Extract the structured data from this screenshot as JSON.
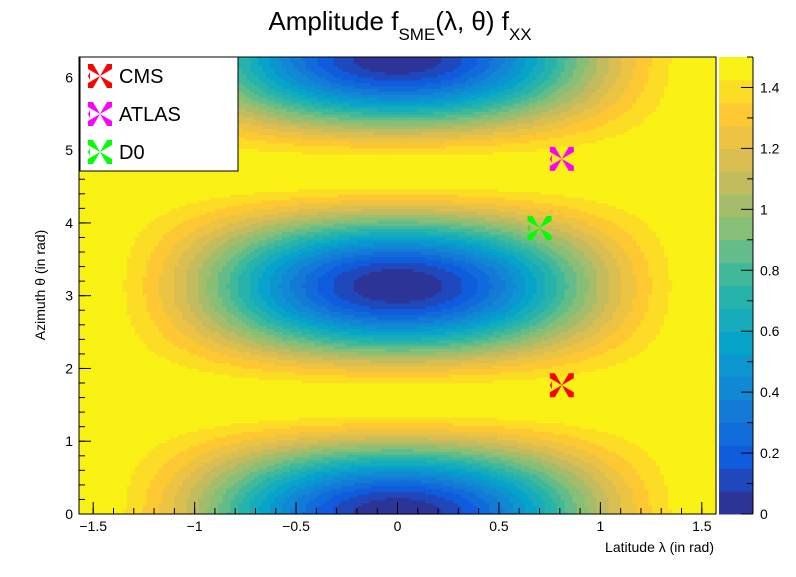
{
  "chart_data": {
    "type": "heatmap",
    "title": {
      "main": "Amplitude f",
      "sub1": "SME",
      "middle": "(λ, θ) f",
      "sub2": "XX"
    },
    "xlabel": "Latitude  λ (in rad)",
    "ylabel": "Azimuth  θ (in rad)",
    "xlim": [
      -1.57,
      1.57
    ],
    "ylim": [
      0,
      6.28
    ],
    "xticks": [
      {
        "value": -1.5,
        "label": "−1.5"
      },
      {
        "value": -1,
        "label": "−1"
      },
      {
        "value": -0.5,
        "label": "−0.5"
      },
      {
        "value": 0,
        "label": "0"
      },
      {
        "value": 0.5,
        "label": "0.5"
      },
      {
        "value": 1,
        "label": "1"
      },
      {
        "value": 1.5,
        "label": "1.5"
      }
    ],
    "yticks": [
      {
        "value": 0,
        "label": "0"
      },
      {
        "value": 1,
        "label": "1"
      },
      {
        "value": 2,
        "label": "2"
      },
      {
        "value": 3,
        "label": "3"
      },
      {
        "value": 4,
        "label": "4"
      },
      {
        "value": 5,
        "label": "5"
      },
      {
        "value": 6,
        "label": "6"
      }
    ],
    "function": "amplitude = 1.5 * (1 - cos²λ · cos²θ)",
    "zlim": [
      0,
      1.5
    ],
    "color_levels": 20,
    "colorbar_ticks": [
      {
        "value": 0,
        "label": "0"
      },
      {
        "value": 0.2,
        "label": "0.2"
      },
      {
        "value": 0.4,
        "label": "0.4"
      },
      {
        "value": 0.6,
        "label": "0.6"
      },
      {
        "value": 0.8,
        "label": "0.8"
      },
      {
        "value": 1,
        "label": "1"
      },
      {
        "value": 1.2,
        "label": "1.2"
      },
      {
        "value": 1.4,
        "label": "1.4"
      }
    ],
    "colormap": [
      "#352a87",
      "#0f5cdd",
      "#1481d6",
      "#06a4ca",
      "#2eb7a4",
      "#87bf77",
      "#d1bb59",
      "#fec832",
      "#f9fb0e"
    ],
    "grid": false,
    "legend_position": "top-left",
    "markers": [
      {
        "name": "CMS",
        "x": 0.81,
        "y": 1.77,
        "color": "#ff0000"
      },
      {
        "name": "ATLAS",
        "x": 0.81,
        "y": 4.88,
        "color": "#ff00ff"
      },
      {
        "name": "D0",
        "x": 0.7,
        "y": 3.93,
        "color": "#00ff00"
      }
    ]
  }
}
